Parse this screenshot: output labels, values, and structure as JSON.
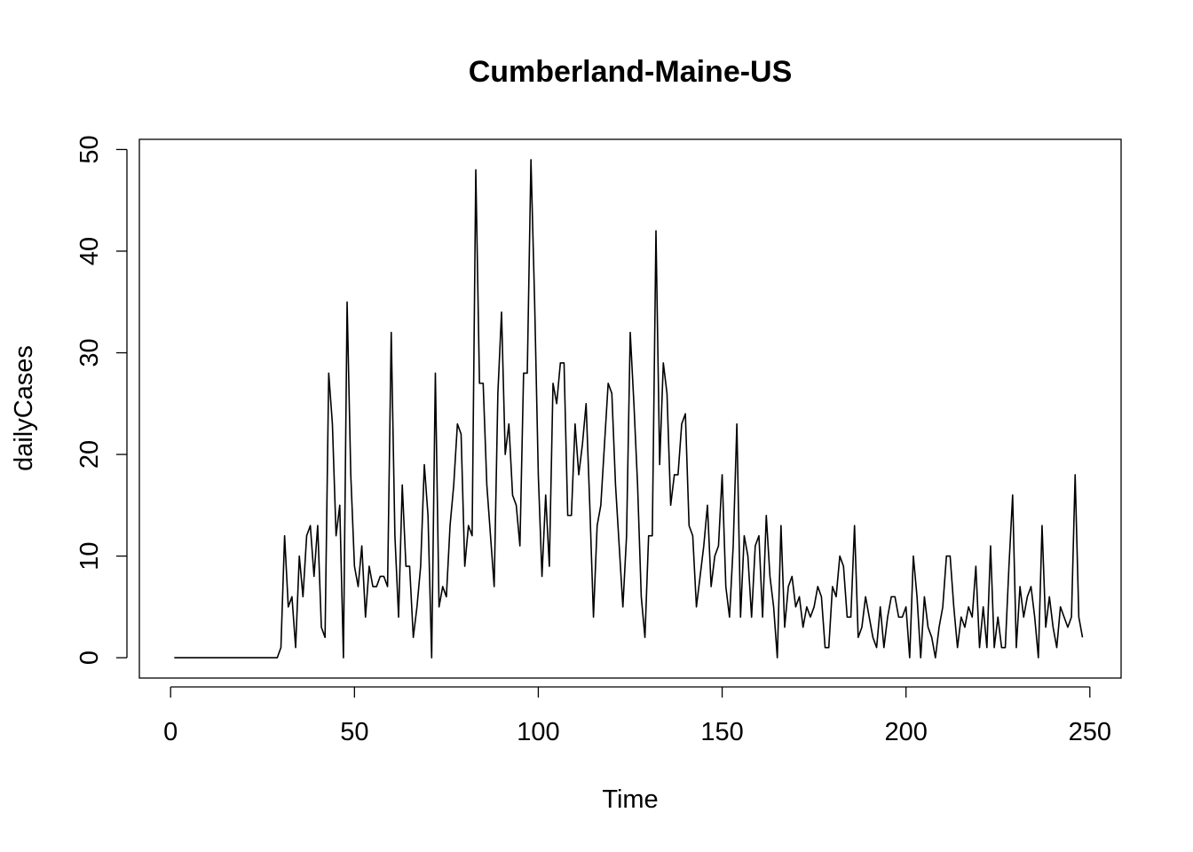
{
  "chart_data": {
    "type": "line",
    "title": "Cumberland-Maine-US",
    "xlabel": "Time",
    "ylabel": "dailyCases",
    "xlim": [
      -8.5,
      258.5
    ],
    "ylim": [
      -2,
      51
    ],
    "xticks": [
      0,
      50,
      100,
      150,
      200,
      250
    ],
    "yticks": [
      0,
      10,
      20,
      30,
      40,
      50
    ],
    "x_start": 1,
    "color": "#000000",
    "series": [
      {
        "name": "dailyCases",
        "values": [
          0,
          0,
          0,
          0,
          0,
          0,
          0,
          0,
          0,
          0,
          0,
          0,
          0,
          0,
          0,
          0,
          0,
          0,
          0,
          0,
          0,
          0,
          0,
          0,
          0,
          0,
          0,
          0,
          0,
          1,
          12,
          5,
          6,
          1,
          10,
          6,
          12,
          13,
          8,
          13,
          3,
          2,
          28,
          23,
          12,
          15,
          0,
          35,
          18,
          9,
          7,
          11,
          4,
          9,
          7,
          7,
          8,
          8,
          7,
          32,
          12,
          4,
          17,
          9,
          9,
          2,
          5,
          9,
          19,
          14,
          0,
          28,
          5,
          7,
          6,
          13,
          17,
          23,
          22,
          9,
          13,
          12,
          48,
          27,
          27,
          17,
          12,
          7,
          26,
          34,
          20,
          23,
          16,
          15,
          11,
          28,
          28,
          49,
          35,
          18,
          8,
          16,
          9,
          27,
          25,
          29,
          29,
          14,
          14,
          23,
          18,
          21,
          25,
          15,
          4,
          13,
          15,
          21,
          27,
          26,
          17,
          11,
          5,
          12,
          32,
          25,
          17,
          6,
          2,
          12,
          12,
          42,
          19,
          29,
          26,
          15,
          18,
          18,
          23,
          24,
          13,
          12,
          5,
          8,
          11,
          15,
          7,
          10,
          11,
          18,
          7,
          4,
          11,
          23,
          4,
          12,
          10,
          4,
          11,
          12,
          4,
          14,
          8,
          5,
          0,
          13,
          3,
          7,
          8,
          5,
          6,
          3,
          5,
          4,
          5,
          7,
          6,
          1,
          1,
          7,
          6,
          10,
          9,
          4,
          4,
          13,
          2,
          3,
          6,
          4,
          2,
          1,
          5,
          1,
          4,
          6,
          6,
          4,
          4,
          5,
          0,
          10,
          6,
          0,
          6,
          3,
          2,
          0,
          3,
          5,
          10,
          10,
          5,
          1,
          4,
          3,
          5,
          4,
          9,
          1,
          5,
          1,
          11,
          1,
          4,
          1,
          1,
          9,
          16,
          1,
          7,
          4,
          6,
          7,
          4,
          0,
          13,
          3,
          6,
          3,
          1,
          5,
          4,
          3,
          4,
          18,
          4,
          2
        ]
      }
    ]
  }
}
